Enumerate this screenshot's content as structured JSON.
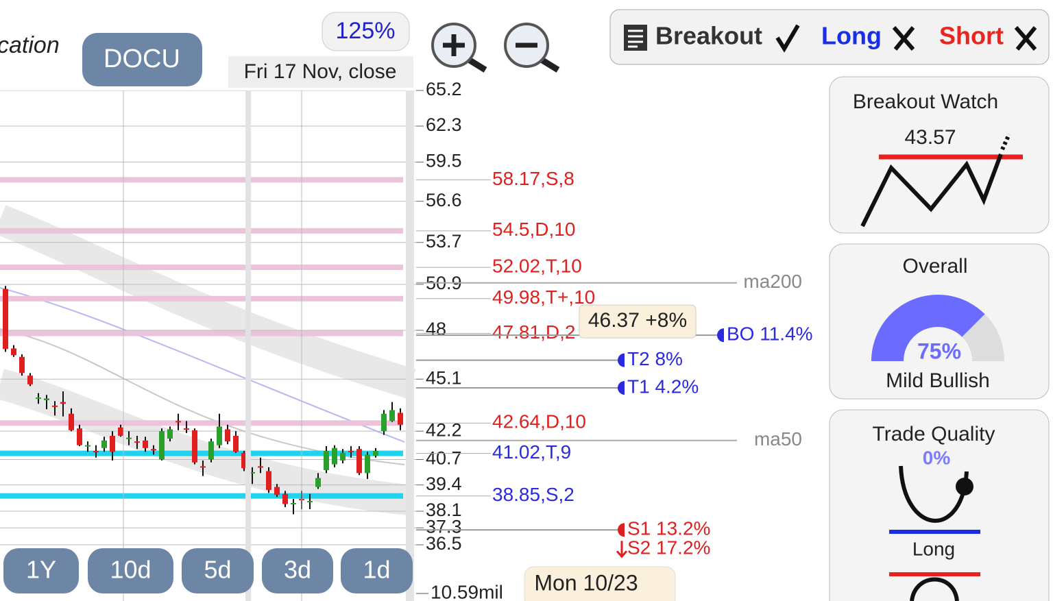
{
  "header": {
    "partial_title": "cation",
    "symbol": "DOCU",
    "zoom": "125%",
    "date_label": "Fri 17 Nov, close"
  },
  "toolbar": {
    "breakout": "Breakout",
    "long": "Long",
    "short": "Short"
  },
  "price_chart": {
    "scale": "log",
    "ylim": [
      36.5,
      65.2
    ],
    "yticks": [
      65.2,
      62.3,
      59.5,
      56.6,
      53.7,
      50.9,
      48,
      45.1,
      42.2,
      40.7,
      39.4,
      38.1,
      37.3,
      36.5
    ],
    "open": [
      50.6,
      46.9,
      46.4,
      45.3,
      44.0,
      43.9,
      43.6,
      43.8,
      43.15,
      42.35,
      41.4,
      41.15,
      41.3,
      41.95,
      42.4,
      41.8,
      41.65,
      41.7,
      41.25,
      40.7,
      41.8,
      42.75,
      42.35,
      42.25,
      40.35,
      40.7,
      41.45,
      42.3,
      41.95,
      41.05,
      40.0,
      40.35,
      40.1,
      39.3,
      38.95,
      38.45,
      38.7,
      38.55,
      39.3,
      40.15,
      40.45,
      40.65,
      41.15,
      41.25,
      40.0,
      40.9,
      42.2,
      42.75,
      43.2,
      42.95
    ],
    "high": [
      50.8,
      47.1,
      46.55,
      45.45,
      44.3,
      44.2,
      43.85,
      44.4,
      43.45,
      42.55,
      41.65,
      41.45,
      41.9,
      42.2,
      42.55,
      42.2,
      41.95,
      41.9,
      41.45,
      42.35,
      42.45,
      43.15,
      42.75,
      42.35,
      40.65,
      41.8,
      43.15,
      42.55,
      42.2,
      41.15,
      40.3,
      40.8,
      40.3,
      39.45,
      39.1,
      38.7,
      39.1,
      38.95,
      40.0,
      41.4,
      41.45,
      41.25,
      41.4,
      41.4,
      41.1,
      41.3,
      43.35,
      43.8,
      43.45,
      43.15
    ],
    "low": [
      46.7,
      46.4,
      45.3,
      44.7,
      43.7,
      43.4,
      43.05,
      43.0,
      42.2,
      41.4,
      41.1,
      40.8,
      41.1,
      40.65,
      41.9,
      41.45,
      41.25,
      41.1,
      40.95,
      40.65,
      41.65,
      42.25,
      42.1,
      40.45,
      39.85,
      40.55,
      41.3,
      41.5,
      41.05,
      40.1,
      39.45,
      40.0,
      39.0,
      38.8,
      38.3,
      37.95,
      38.2,
      38.2,
      39.2,
      40.0,
      40.3,
      40.5,
      40.8,
      39.9,
      39.7,
      40.8,
      42.0,
      42.7,
      42.25,
      42.45
    ],
    "close": [
      46.87,
      46.5,
      45.45,
      44.8,
      44.05,
      44.0,
      43.55,
      43.7,
      42.25,
      41.45,
      41.45,
      41.1,
      41.7,
      41.1,
      41.95,
      41.85,
      41.6,
      41.3,
      41.2,
      42.2,
      42.3,
      42.7,
      42.3,
      40.55,
      40.3,
      41.65,
      42.45,
      41.65,
      41.1,
      40.25,
      40.05,
      40.3,
      39.15,
      38.9,
      38.45,
      38.5,
      38.65,
      38.6,
      39.75,
      41.15,
      41.3,
      41.05,
      41.1,
      40.0,
      40.95,
      41.15,
      43.15,
      43.35,
      42.55,
      42.9
    ],
    "levels": [
      {
        "value": 58.17,
        "label": "58.17,S,8",
        "color": "#e0201f",
        "band": "#ebc3da"
      },
      {
        "value": 54.5,
        "label": "54.5,D,10",
        "color": "#e0201f",
        "band": "#ebc3da"
      },
      {
        "value": 52.02,
        "label": "52.02,T,10",
        "color": "#e0201f",
        "band": "#ebc3da"
      },
      {
        "value": 49.98,
        "label": "49.98,T+,10",
        "color": "#e0201f",
        "band": "#ebc3da"
      },
      {
        "value": 47.81,
        "label": "47.81,D,2",
        "color": "#e0201f",
        "band": "#ebc3da"
      },
      {
        "value": 42.64,
        "label": "42.64,D,10",
        "color": "#e0201f",
        "band": "#ebc3da"
      },
      {
        "value": 41.02,
        "label": "41.02,T,9",
        "color": "#2a2ae0",
        "band": "#22d3ee"
      },
      {
        "value": 38.85,
        "label": "38.85,S,2",
        "color": "#2a2ae0",
        "band": "#22d3ee"
      }
    ],
    "moving_averages": [
      {
        "value": 51.0,
        "label": "ma200"
      },
      {
        "value": 41.7,
        "label": "ma50"
      }
    ],
    "targets": [
      {
        "value": 47.7,
        "label": "BO 11.4%",
        "color": "#2a2ae0",
        "end": 1050
      },
      {
        "value": 46.2,
        "label": "T2 8%",
        "color": "#2a2ae0",
        "end": 905
      },
      {
        "value": 44.6,
        "label": "T1 4.2%",
        "color": "#2a2ae0",
        "end": 905
      },
      {
        "value": 37.2,
        "label": "S1 13.2%",
        "color": "#e0201f",
        "end": 905
      },
      {
        "value": 36.3,
        "label": "S2 17.2%",
        "color": "#e0201f",
        "end": 905
      }
    ],
    "tooltip": "46.37 +8%"
  },
  "range_buttons": [
    "1Y",
    "10d",
    "5d",
    "3d",
    "1d"
  ],
  "volume_label": "10.59mil",
  "date_tooltip": "Mon 10/23",
  "panels": {
    "breakout_watch": {
      "title": "Breakout Watch",
      "value": 43.57
    },
    "overall": {
      "title": "Overall",
      "percent": {
        "value": 75,
        "label": "75%"
      },
      "rating": "Mild Bullish"
    },
    "trade_quality": {
      "title": "Trade Quality",
      "percent": {
        "value": 0,
        "label": "0%"
      },
      "side": "Long"
    }
  }
}
